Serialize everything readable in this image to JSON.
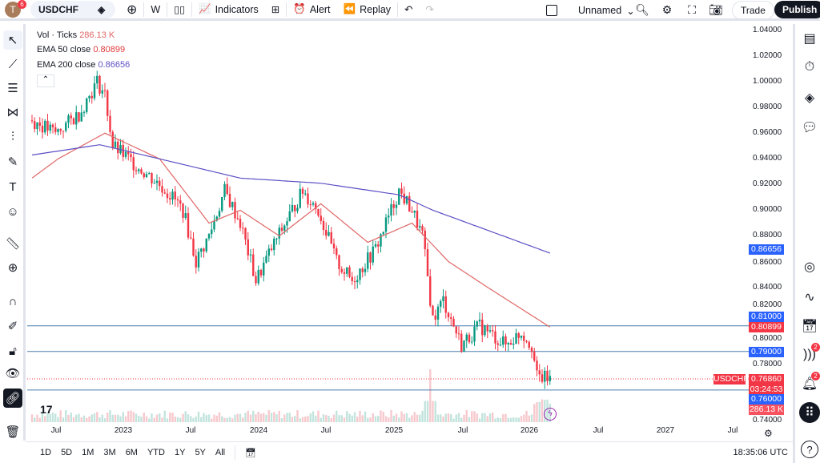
{
  "header": {
    "avatar_letter": "T",
    "avatar_badge": "6",
    "symbol": "USDCHF",
    "interval": "W",
    "indicators": "Indicators",
    "alert": "Alert",
    "replay": "Replay",
    "layout_name": "Unnamed",
    "trade": "Trade",
    "publish": "Publish"
  },
  "legend": {
    "vol_label": "Vol · Ticks",
    "vol_value": "286.13 K",
    "ema50_label": "EMA 50 close",
    "ema50_value": "0.80899",
    "ema200_label": "EMA 200 close",
    "ema200_value": "0.86656"
  },
  "price_axis": [
    "1.04000",
    "1.02000",
    "1.00000",
    "0.98000",
    "0.96000",
    "0.94000",
    "0.92000",
    "0.90000",
    "0.88000",
    "0.86000",
    "0.84000",
    "0.82000",
    "0.80000",
    "0.78000",
    "0.74000"
  ],
  "price_labels": {
    "ema200": "0.86656",
    "line1": "0.81000",
    "ema50": "0.80899",
    "line2": "0.79000",
    "symbol": "USDCHF",
    "last": "0.76860",
    "countdown": "03:24:53",
    "line3": "0.76000",
    "volume": "286.13 K"
  },
  "time_axis": [
    "Jul",
    "2023",
    "Jul",
    "2024",
    "Jul",
    "2025",
    "Jul",
    "2026",
    "Jul",
    "2027",
    "Jul"
  ],
  "bottom": {
    "ranges": [
      "1D",
      "5D",
      "1M",
      "3M",
      "6M",
      "YTD",
      "1Y",
      "5Y",
      "All"
    ],
    "clock": "18:35:06 UTC"
  },
  "right_badges": {
    "ideas": "2",
    "alerts": "2"
  },
  "colors": {
    "up": "#089981",
    "down": "#f23645",
    "ema50": "#e06666",
    "ema200": "#5b4fc4",
    "hline": "#2962ff"
  },
  "chart_data": {
    "type": "candlestick",
    "symbol": "USDCHF",
    "interval": "weekly",
    "ylim": [
      0.74,
      1.04
    ],
    "price_keypoints": [
      [
        0,
        0.97
      ],
      [
        9,
        0.96
      ],
      [
        18,
        0.975
      ],
      [
        25,
        1.0
      ],
      [
        28,
        0.99
      ],
      [
        31,
        0.95
      ],
      [
        40,
        0.935
      ],
      [
        49,
        0.92
      ],
      [
        54,
        0.91
      ],
      [
        58,
        0.9
      ],
      [
        63,
        0.86
      ],
      [
        68,
        0.88
      ],
      [
        74,
        0.915
      ],
      [
        80,
        0.89
      ],
      [
        86,
        0.845
      ],
      [
        92,
        0.87
      ],
      [
        100,
        0.9
      ],
      [
        104,
        0.915
      ],
      [
        110,
        0.9
      ],
      [
        117,
        0.86
      ],
      [
        123,
        0.845
      ],
      [
        132,
        0.87
      ],
      [
        141,
        0.915
      ],
      [
        146,
        0.9
      ],
      [
        150,
        0.88
      ],
      [
        154,
        0.815
      ],
      [
        158,
        0.83
      ],
      [
        165,
        0.795
      ],
      [
        172,
        0.81
      ],
      [
        182,
        0.795
      ],
      [
        188,
        0.805
      ],
      [
        192,
        0.795
      ],
      [
        194,
        0.77
      ],
      [
        199,
        0.7686
      ]
    ],
    "ema50_keypoints": [
      [
        0,
        0.925
      ],
      [
        10,
        0.94
      ],
      [
        28,
        0.96
      ],
      [
        49,
        0.94
      ],
      [
        68,
        0.89
      ],
      [
        80,
        0.9
      ],
      [
        95,
        0.88
      ],
      [
        111,
        0.905
      ],
      [
        129,
        0.875
      ],
      [
        146,
        0.89
      ],
      [
        160,
        0.86
      ],
      [
        175,
        0.84
      ],
      [
        199,
        0.809
      ]
    ],
    "ema200_keypoints": [
      [
        0,
        0.943
      ],
      [
        26,
        0.951
      ],
      [
        49,
        0.94
      ],
      [
        80,
        0.925
      ],
      [
        111,
        0.921
      ],
      [
        141,
        0.912
      ],
      [
        154,
        0.9
      ],
      [
        199,
        0.8666
      ]
    ],
    "horizontal_lines": [
      0.81,
      0.79,
      0.76
    ],
    "last_price": 0.7686
  }
}
